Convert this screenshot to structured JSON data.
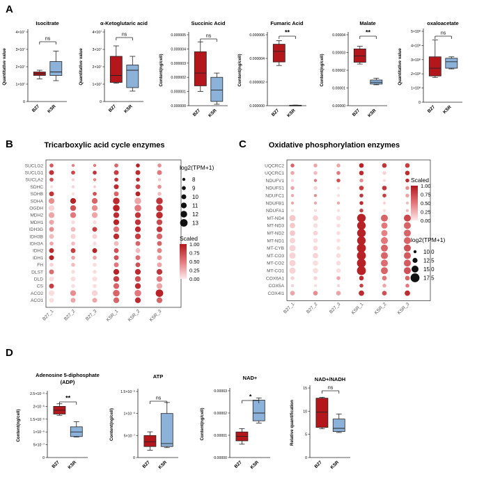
{
  "colors": {
    "b27": "#b3171c",
    "ksr": "#8db2d9",
    "edge": "#222222",
    "heat_high": "#b3171c",
    "heat_low": "#fde9ea"
  },
  "panels": {
    "A": "A",
    "B": "B",
    "C": "C",
    "D": "D"
  },
  "group_labels": [
    "B27",
    "KSR"
  ],
  "sig_ns": "ns",
  "chart_data": [
    {
      "id": "isocitrate",
      "type": "box",
      "title": "Isocitrate",
      "ylabel": "Quantitative value",
      "yticks": [
        "0",
        "1×10⁷",
        "2×10⁷",
        "3×10⁷",
        "4×10⁷"
      ],
      "ylim": [
        0,
        40000000
      ],
      "sig": "ns",
      "series": [
        {
          "name": "B27",
          "min": 13000000,
          "q1": 15000000,
          "median": 16000000,
          "q3": 17000000,
          "max": 18000000
        },
        {
          "name": "KSR",
          "min": 12000000,
          "q1": 15000000,
          "median": 17000000,
          "q3": 23000000,
          "max": 29000000
        }
      ]
    },
    {
      "id": "akg",
      "type": "box",
      "title": "α-Ketoglutaric acid",
      "ylabel": "Quantitative value",
      "yticks": [
        "0",
        "1×10⁷",
        "2×10⁷",
        "3×10⁷",
        "4×10⁷"
      ],
      "ylim": [
        0,
        40000000
      ],
      "sig": "ns",
      "series": [
        {
          "name": "B27",
          "min": 10500000,
          "q1": 11000000,
          "median": 15000000,
          "q3": 26000000,
          "max": 32000000
        },
        {
          "name": "KSR",
          "min": 6000000,
          "q1": 8000000,
          "median": 18000000,
          "q3": 21000000,
          "max": 26000000
        }
      ]
    },
    {
      "id": "succinic",
      "type": "box",
      "title": "Succinic Acid",
      "ylabel": "Content(ng/cell)",
      "yticks": [
        "0.000000",
        "0.000001",
        "0.000002",
        "0.000003",
        "0.000004",
        "0.000005"
      ],
      "ylim": [
        0,
        5e-06
      ],
      "sig": "ns",
      "series": [
        {
          "name": "B27",
          "min": 1e-06,
          "q1": 1.4e-06,
          "median": 2.3e-06,
          "q3": 3.8e-06,
          "max": 4.5e-06
        },
        {
          "name": "KSR",
          "min": 1e-07,
          "q1": 3e-07,
          "median": 1.1e-06,
          "q3": 2e-06,
          "max": 2.3e-06
        }
      ]
    },
    {
      "id": "fumaric",
      "type": "box",
      "title": "Fumaric Acid",
      "ylabel": "Content(ng/cell)",
      "yticks": [
        "0.000000",
        "0.000002",
        "0.000004",
        "0.000006"
      ],
      "ylim": [
        0,
        6e-06
      ],
      "sig": "**",
      "series": [
        {
          "name": "B27",
          "min": 3.4e-06,
          "q1": 3.7e-06,
          "median": 4.6e-06,
          "q3": 5.2e-06,
          "max": 5.5e-06
        },
        {
          "name": "KSR",
          "min": 1e-08,
          "q1": 2e-08,
          "median": 3e-08,
          "q3": 4e-08,
          "max": 5e-08
        }
      ]
    },
    {
      "id": "malate",
      "type": "box",
      "title": "Malate",
      "ylabel": "Content(ng/cell)",
      "yticks": [
        "0.00000",
        "0.00001",
        "0.00002",
        "0.00003",
        "0.00004"
      ],
      "ylim": [
        0,
        4e-05
      ],
      "sig": "**",
      "series": [
        {
          "name": "B27",
          "min": 2.35e-05,
          "q1": 2.45e-05,
          "median": 2.8e-05,
          "q3": 3.2e-05,
          "max": 3.35e-05
        },
        {
          "name": "KSR",
          "min": 1.18e-05,
          "q1": 1.22e-05,
          "median": 1.32e-05,
          "q3": 1.45e-05,
          "max": 1.55e-05
        }
      ]
    },
    {
      "id": "oxaloacetate",
      "type": "box",
      "title": "oxaloacetate",
      "ylabel": "Quantitative value",
      "yticks": [
        "0",
        "1×10⁸",
        "2×10⁸",
        "3×10⁸",
        "4×10⁸",
        "5×10⁸"
      ],
      "ylim": [
        0,
        500000000
      ],
      "sig": "ns",
      "series": [
        {
          "name": "B27",
          "min": 175000000,
          "q1": 185000000,
          "median": 240000000,
          "q3": 320000000,
          "max": 440000000
        },
        {
          "name": "KSR",
          "min": 235000000,
          "q1": 240000000,
          "median": 285000000,
          "q3": 310000000,
          "max": 320000000
        }
      ]
    },
    {
      "id": "adp",
      "type": "box",
      "title": "Adenosine 5-diphosphate (ADP)",
      "ylabel": "Content(ng/cell)",
      "yticks": [
        "0",
        "5×10⁻⁷",
        "1×10⁻⁶",
        "1.5×10⁻⁶",
        "2×10⁻⁶",
        "2.5×10⁻⁶"
      ],
      "ylim": [
        0,
        2.5e-06
      ],
      "sig": "**",
      "series": [
        {
          "name": "B27",
          "min": 1.65e-06,
          "q1": 1.7e-06,
          "median": 1.85e-06,
          "q3": 2e-06,
          "max": 2.1e-06
        },
        {
          "name": "KSR",
          "min": 8e-07,
          "q1": 8.2e-07,
          "median": 1e-06,
          "q3": 1.2e-06,
          "max": 1.4e-06
        }
      ]
    },
    {
      "id": "atp",
      "type": "box",
      "title": "ATP",
      "ylabel": "Content(ng/cell)",
      "yticks": [
        "0",
        "5×10⁻⁷",
        "1×10⁻⁶",
        "1.5×10⁻⁶"
      ],
      "ylim": [
        0,
        1.8e-06
      ],
      "sig": "ns",
      "series": [
        {
          "name": "B27",
          "min": 2e-07,
          "q1": 3e-07,
          "median": 4.3e-07,
          "q3": 6e-07,
          "max": 7e-07
        },
        {
          "name": "KSR",
          "min": 2.7e-07,
          "q1": 3e-07,
          "median": 3.8e-07,
          "q3": 1.2e-06,
          "max": 1.5e-06
        }
      ]
    },
    {
      "id": "nad",
      "type": "box",
      "title": "NAD+",
      "ylabel": "Content(ng/cell)",
      "yticks": [
        "0.00000",
        "0.00001",
        "0.00002",
        "0.00003"
      ],
      "ylim": [
        0,
        3e-05
      ],
      "sig": "*",
      "series": [
        {
          "name": "B27",
          "min": 6e-06,
          "q1": 7.5e-06,
          "median": 9.5e-06,
          "q3": 1.15e-05,
          "max": 1.3e-05
        },
        {
          "name": "KSR",
          "min": 1.55e-05,
          "q1": 1.65e-05,
          "median": 2e-05,
          "q3": 2.58e-05,
          "max": 2.68e-05
        }
      ]
    },
    {
      "id": "nadh_ratio",
      "type": "box",
      "title": "NAD+/NADH",
      "ylabel": "Relative quantification",
      "yticks": [
        "0",
        "5",
        "10",
        "15"
      ],
      "ylim": [
        0,
        15
      ],
      "sig": "ns",
      "series": [
        {
          "name": "B27",
          "min": 6.2,
          "q1": 6.5,
          "median": 9.8,
          "q3": 12.8,
          "max": 13
        },
        {
          "name": "KSR",
          "min": 5.4,
          "q1": 5.6,
          "median": 6.3,
          "q3": 8.3,
          "max": 9.4
        }
      ]
    },
    {
      "id": "tca",
      "type": "heatmap",
      "title": "Tricarboxylic acid cycle enzymes",
      "columns": [
        "B27_1",
        "B27_2",
        "B27_3",
        "KSR_1",
        "KSR_2",
        "KSR_3"
      ],
      "rows": [
        "SUCLG2",
        "SUCLG1",
        "SUCLA2",
        "SDHC",
        "SDHB",
        "SDHA",
        "OGDH",
        "MDH2",
        "MDH1",
        "IDH3G",
        "IDH3B",
        "IDH3A",
        "IDH2",
        "IDH1",
        "FH",
        "DLST",
        "DLD",
        "CS",
        "ACO2",
        "ACO1"
      ],
      "scaled": [
        [
          0.65,
          0.45,
          0.5,
          0.6,
          0.95,
          0.4
        ],
        [
          0.85,
          0.75,
          0.85,
          0.8,
          0.9,
          0.5
        ],
        [
          0.7,
          0.1,
          0.45,
          0.85,
          0.9,
          0.15
        ],
        [
          0.05,
          0.1,
          0.1,
          0.9,
          0.8,
          0.4
        ],
        [
          0.85,
          0.05,
          0.7,
          0.6,
          0.95,
          0.2
        ],
        [
          0.4,
          0.95,
          0.6,
          0.9,
          0.3,
          0.85
        ],
        [
          0.1,
          0.7,
          0.4,
          0.95,
          0.5,
          0.85
        ],
        [
          0.3,
          0.5,
          0.3,
          0.9,
          0.85,
          0.9
        ],
        [
          0.3,
          0.05,
          0.05,
          0.95,
          0.85,
          0.75
        ],
        [
          0.4,
          0.2,
          0.8,
          0.55,
          0.9,
          0.85
        ],
        [
          0.2,
          0.1,
          0.1,
          0.9,
          0.8,
          0.6
        ],
        [
          0.3,
          0.2,
          0.05,
          0.2,
          0.6,
          0.6
        ],
        [
          0.9,
          0.8,
          0.95,
          0.7,
          0.2,
          0.45
        ],
        [
          0.95,
          0.3,
          0.3,
          0.7,
          0.55,
          0.35
        ],
        [
          0.1,
          0.2,
          0.05,
          0.5,
          0.7,
          0.3
        ],
        [
          0.55,
          0.05,
          0.05,
          0.95,
          0.9,
          0.85
        ],
        [
          0.05,
          0.05,
          0.05,
          0.8,
          0.7,
          0.5
        ],
        [
          0.8,
          0.05,
          0.05,
          0.6,
          0.9,
          0.3
        ],
        [
          0.05,
          0.4,
          0.1,
          0.6,
          0.5,
          0.95
        ],
        [
          0.05,
          0.3,
          0.3,
          0.6,
          0.9,
          0.6
        ]
      ],
      "size": [
        [
          9,
          8,
          8,
          9,
          9,
          9
        ],
        [
          10,
          9,
          9,
          10,
          10,
          10
        ],
        [
          9,
          8,
          8,
          9,
          9,
          8
        ],
        [
          8,
          8,
          8,
          10,
          10,
          9
        ],
        [
          10,
          8,
          9,
          10,
          10,
          9
        ],
        [
          11,
          11,
          11,
          12,
          12,
          12
        ],
        [
          11,
          11,
          11,
          12,
          12,
          12
        ],
        [
          11,
          11,
          11,
          11,
          11,
          12
        ],
        [
          10,
          9,
          9,
          11,
          11,
          11
        ],
        [
          10,
          10,
          10,
          11,
          11,
          11
        ],
        [
          10,
          10,
          10,
          11,
          11,
          11
        ],
        [
          9,
          9,
          9,
          10,
          10,
          10
        ],
        [
          10,
          10,
          10,
          10,
          10,
          10
        ],
        [
          10,
          9,
          9,
          10,
          10,
          10
        ],
        [
          9,
          9,
          9,
          10,
          10,
          10
        ],
        [
          10,
          9,
          9,
          11,
          11,
          11
        ],
        [
          10,
          10,
          10,
          11,
          11,
          11
        ],
        [
          10,
          9,
          9,
          11,
          11,
          11
        ],
        [
          11,
          11,
          11,
          12,
          12,
          13
        ],
        [
          10,
          10,
          10,
          11,
          11,
          11
        ]
      ],
      "size_legend": {
        "title": "log2(TPM+1)",
        "values": [
          8,
          9,
          10,
          11,
          12,
          13
        ]
      },
      "color_legend": {
        "title": "Scaled",
        "ticks": [
          "1.00",
          "0.75",
          "0.50",
          "0.25",
          "0.00"
        ]
      }
    },
    {
      "id": "oxphos",
      "type": "heatmap",
      "title": "Oxidative phosphorylation enzymes",
      "columns": [
        "B27_1",
        "B27_2",
        "B27_3",
        "KSR_1",
        "KSR_2",
        "KSR_3"
      ],
      "rows": [
        "UQCRC2",
        "UQCRC1",
        "NDUFV1",
        "NDUFS1",
        "NDUFC1",
        "NDUFB1",
        "NDUFA1",
        "MT-ND4",
        "MT-ND3",
        "MT-ND2",
        "MT-ND1",
        "MT-CYB",
        "MT-CO3",
        "MT-CO2",
        "MT-CO1",
        "COX6A1",
        "COX5A",
        "COX4I1"
      ],
      "scaled": [
        [
          0.6,
          0.3,
          0.3,
          0.95,
          0.85,
          0.8
        ],
        [
          0.3,
          0.2,
          0.5,
          0.9,
          0.1,
          0.9
        ],
        [
          0.1,
          0.5,
          0.7,
          0.4,
          0.05,
          0.9
        ],
        [
          0.3,
          0.1,
          0.05,
          0.8,
          0.85,
          0.4
        ],
        [
          0.3,
          0.4,
          0.05,
          0.85,
          0.8,
          0.3
        ],
        [
          0.3,
          0.3,
          0.3,
          0.9,
          0.1,
          0.2
        ],
        [
          0.05,
          0.05,
          0.05,
          0.8,
          0.05,
          0.2
        ],
        [
          0.15,
          0.1,
          0.05,
          0.95,
          0.6,
          0.75
        ],
        [
          0.15,
          0.05,
          0.05,
          0.95,
          0.5,
          0.6
        ],
        [
          0.15,
          0.1,
          0.05,
          0.95,
          0.45,
          0.6
        ],
        [
          0.1,
          0.05,
          0.05,
          0.95,
          0.5,
          0.6
        ],
        [
          0.1,
          0.1,
          0.05,
          0.95,
          0.6,
          0.7
        ],
        [
          0.1,
          0.1,
          0.05,
          0.95,
          0.6,
          0.65
        ],
        [
          0.1,
          0.05,
          0.05,
          0.95,
          0.55,
          0.65
        ],
        [
          0.1,
          0.05,
          0.05,
          0.95,
          0.6,
          0.7
        ],
        [
          0.1,
          0.1,
          0.3,
          0.9,
          0.5,
          0.6
        ],
        [
          0.1,
          0.05,
          0.1,
          0.8,
          0.3,
          0.5
        ],
        [
          0.3,
          0.4,
          0.3,
          0.9,
          0.7,
          0.9
        ]
      ],
      "size": [
        [
          11,
          11,
          11,
          12,
          12,
          12
        ],
        [
          11,
          11,
          11,
          12,
          11,
          12
        ],
        [
          10,
          10,
          11,
          11,
          10,
          11
        ],
        [
          11,
          11,
          10,
          12,
          12,
          11
        ],
        [
          10,
          10,
          10,
          11,
          11,
          11
        ],
        [
          10,
          10,
          10,
          11,
          10,
          10
        ],
        [
          10,
          10,
          10,
          11,
          10,
          10
        ],
        [
          14,
          13,
          12,
          17,
          15,
          15
        ],
        [
          13,
          12,
          11,
          17,
          14,
          15
        ],
        [
          13,
          12,
          11,
          17,
          14,
          15
        ],
        [
          13,
          12,
          11,
          17,
          15,
          15
        ],
        [
          14,
          12,
          11,
          17.5,
          15,
          15
        ],
        [
          14,
          13,
          12,
          17.5,
          15,
          15
        ],
        [
          14,
          13,
          12,
          17.5,
          15,
          15
        ],
        [
          14,
          13,
          12,
          17.5,
          15,
          15
        ],
        [
          11,
          11,
          11,
          12,
          12,
          12
        ],
        [
          10,
          10,
          10,
          11,
          11,
          11
        ],
        [
          12,
          12,
          12,
          13,
          12,
          13
        ]
      ],
      "size_legend": {
        "title": "log2(TPM+1)",
        "values": [
          10.0,
          12.5,
          15.0,
          17.5
        ]
      },
      "color_legend": {
        "title": "Scaled",
        "ticks": [
          "1.00",
          "0.75",
          "0.50",
          "0.25",
          "0.00"
        ]
      }
    }
  ]
}
